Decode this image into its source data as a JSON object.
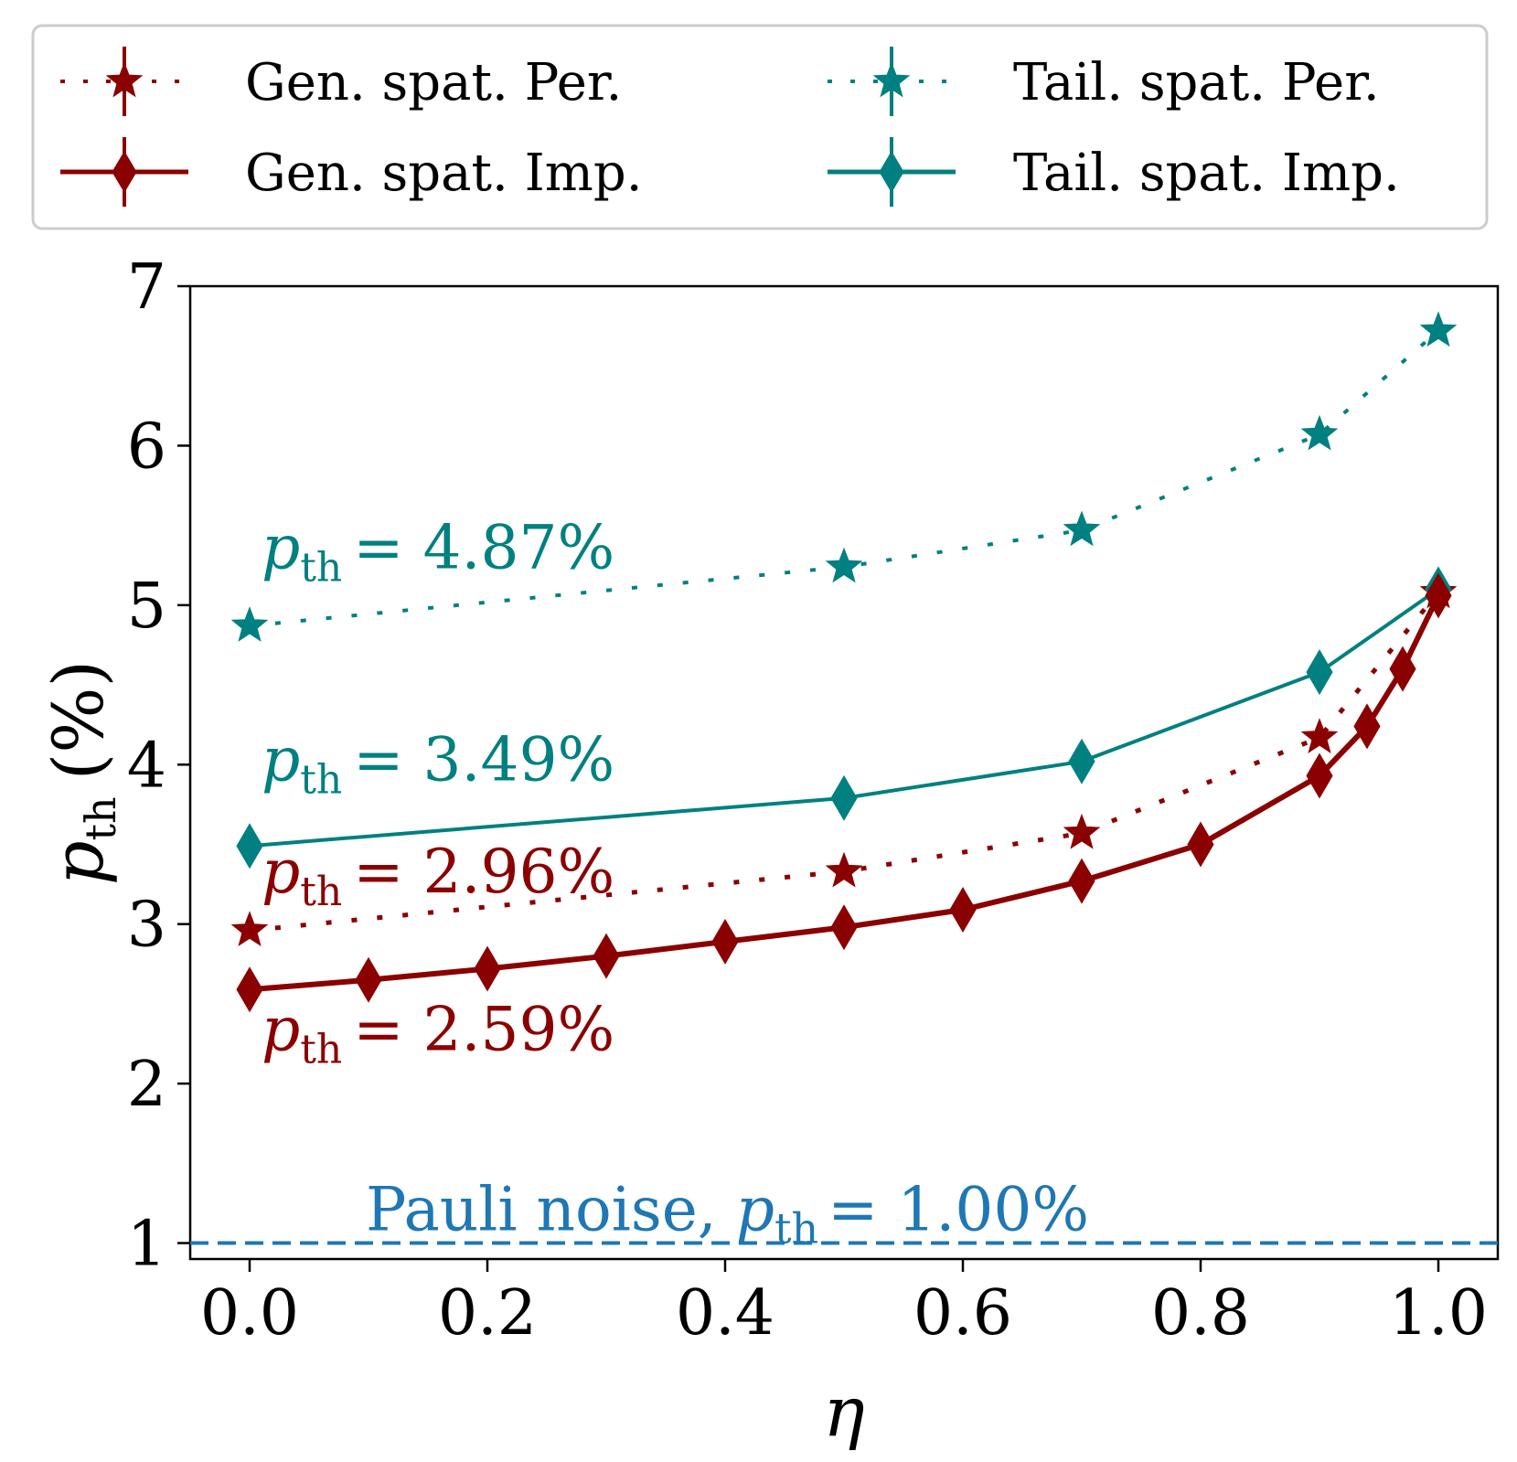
{
  "chart_data": {
    "type": "line",
    "xlabel": "η",
    "ylabel": "p_th (%)",
    "ylabel_main": "p",
    "ylabel_sub": "th",
    "ylabel_unit": "(%)",
    "xlim": [
      -0.05,
      1.05
    ],
    "ylim": [
      0.9,
      7.0
    ],
    "xticks": [
      0.0,
      0.2,
      0.4,
      0.6,
      0.8,
      1.0
    ],
    "xtick_labels": [
      "0.0",
      "0.2",
      "0.4",
      "0.6",
      "0.8",
      "1.0"
    ],
    "yticks": [
      1,
      2,
      3,
      4,
      5,
      6,
      7
    ],
    "ytick_labels": [
      "1",
      "2",
      "3",
      "4",
      "5",
      "6",
      "7"
    ],
    "legend_placement": "top (outside plot), 2 columns",
    "series": [
      {
        "name": "Gen. spat. Per.",
        "color": "#8b0000",
        "linestyle": "dotted",
        "marker": "star",
        "x": [
          0.0,
          0.5,
          0.7,
          0.9,
          1.0
        ],
        "y": [
          2.96,
          3.33,
          3.57,
          4.17,
          5.08
        ]
      },
      {
        "name": "Tail. spat. Per.",
        "color": "#008080",
        "linestyle": "dotted",
        "marker": "star",
        "x": [
          0.0,
          0.5,
          0.7,
          0.9,
          1.0
        ],
        "y": [
          4.87,
          5.24,
          5.47,
          6.07,
          6.72
        ]
      },
      {
        "name": "Gen. spat. Imp.",
        "color": "#8b0000",
        "linestyle": "solid",
        "marker": "diamond",
        "x": [
          0.0,
          0.1,
          0.2,
          0.3,
          0.4,
          0.5,
          0.6,
          0.7,
          0.8,
          0.9,
          0.94,
          0.97,
          1.0
        ],
        "y": [
          2.59,
          2.65,
          2.72,
          2.8,
          2.89,
          2.98,
          3.09,
          3.27,
          3.5,
          3.93,
          4.24,
          4.6,
          5.06
        ]
      },
      {
        "name": "Tail. spat. Imp.",
        "color": "#008080",
        "linestyle": "solid",
        "marker": "diamond",
        "x": [
          0.0,
          0.5,
          0.7,
          0.9,
          1.0
        ],
        "y": [
          3.49,
          3.79,
          4.02,
          4.58,
          5.1
        ]
      }
    ],
    "reference_line": {
      "label": "Pauli noise, ",
      "label_value": "= 1.00%",
      "y": 1.0,
      "color": "#1f77b4",
      "linestyle": "dashed"
    },
    "annotations": [
      {
        "sym": "p",
        "sub": "th",
        "text": "= 4.87%",
        "color": "#008080",
        "x": 0.01,
        "y": 5.23
      },
      {
        "sym": "p",
        "sub": "th",
        "text": "= 3.49%",
        "color": "#008080",
        "x": 0.01,
        "y": 3.9
      },
      {
        "sym": "p",
        "sub": "th",
        "text": "= 2.96%",
        "color": "#8b0000",
        "x": 0.01,
        "y": 3.2
      },
      {
        "sym": "p",
        "sub": "th",
        "text": "= 2.59%",
        "color": "#8b0000",
        "x": 0.01,
        "y": 2.21
      }
    ]
  }
}
